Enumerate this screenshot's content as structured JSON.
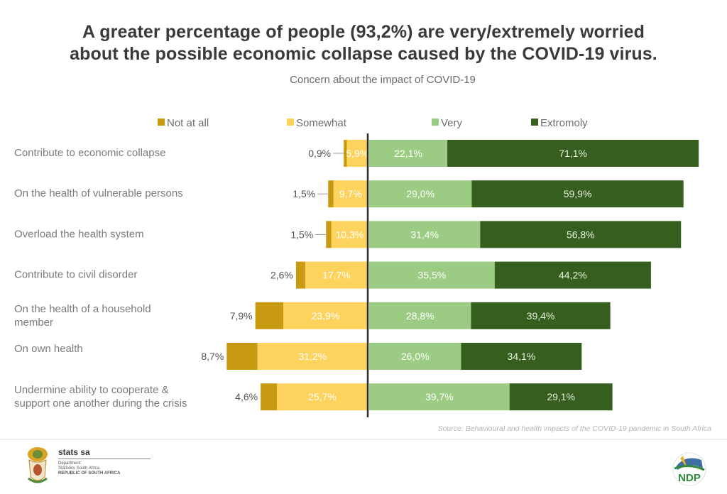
{
  "header": {
    "title_line1": "A greater percentage of people (93,2%) are very/extremely worried",
    "title_line2": "about the possible economic collapse caused by the COVID-19 virus.",
    "subtitle": "Concern about the impact of COVID-19"
  },
  "footer": {
    "source": "Source: Behavioural and health impacts of the COVID-19 pandemic in South Africa",
    "statssa_brand": "stats sa",
    "statssa_line1": "Department:",
    "statssa_line2": "Statistics South Africa",
    "statssa_line3": "REPUBLIC OF SOUTH AFRICA",
    "ndp_logo_text": "NDP"
  },
  "chart_data": {
    "type": "bar",
    "orientation": "horizontal",
    "stacking": "diverging",
    "title": "Concern about the impact of COVID-19",
    "xlabel": "",
    "ylabel": "",
    "unit": "%",
    "legend_position": "top",
    "grid": false,
    "categories": [
      "Contribute to economic collapse",
      "On the health of vulnerable persons",
      "Overload the health system",
      "Contribute to civil disorder",
      "On the health of a household member",
      "On own health",
      "Undermine ability to cooperate & support one another during the crisis"
    ],
    "category_lines": [
      [
        "Contribute to economic collapse"
      ],
      [
        "On the health of vulnerable persons"
      ],
      [
        "Overload the health system"
      ],
      [
        "Contribute to civil disorder"
      ],
      [
        "On the health of a household",
        "member"
      ],
      [
        "On own health"
      ],
      [
        "Undermine ability to cooperate &",
        "support one another during the crisis"
      ]
    ],
    "series": [
      {
        "name": "Not at all",
        "side": "negative",
        "color": "#c79a12",
        "values": [
          0.9,
          1.5,
          1.5,
          2.6,
          7.9,
          8.7,
          4.6
        ],
        "labels": [
          "0,9%",
          "1,5%",
          "1,5%",
          "2,6%",
          "7,9%",
          "8,7%",
          "4,6%"
        ]
      },
      {
        "name": "Somewhat",
        "side": "negative",
        "color": "#fdd35e",
        "values": [
          5.9,
          9.7,
          10.3,
          17.7,
          23.9,
          31.2,
          25.7
        ],
        "labels": [
          "5,9%",
          "9,7%",
          "10,3%",
          "17,7%",
          "23,9%",
          "31,2%",
          "25,7%"
        ]
      },
      {
        "name": "Very",
        "side": "positive",
        "color": "#9ccb83",
        "values": [
          22.1,
          29.0,
          31.4,
          35.5,
          28.8,
          26.0,
          39.7
        ],
        "labels": [
          "22,1%",
          "29,0%",
          "31,4%",
          "35,5%",
          "28,8%",
          "26,0%",
          "39,7%"
        ]
      },
      {
        "name": "Extremely",
        "side": "positive",
        "color": "#355e1f",
        "values": [
          71.1,
          59.9,
          56.8,
          44.2,
          39.4,
          34.1,
          29.1
        ],
        "labels": [
          "71,1%",
          "59,9%",
          "56,8%",
          "44,2%",
          "39,4%",
          "34,1%",
          "29,1%"
        ]
      }
    ],
    "legend_labels": [
      "Not at all",
      "Somewhat",
      "Very",
      "Extromoly"
    ]
  }
}
